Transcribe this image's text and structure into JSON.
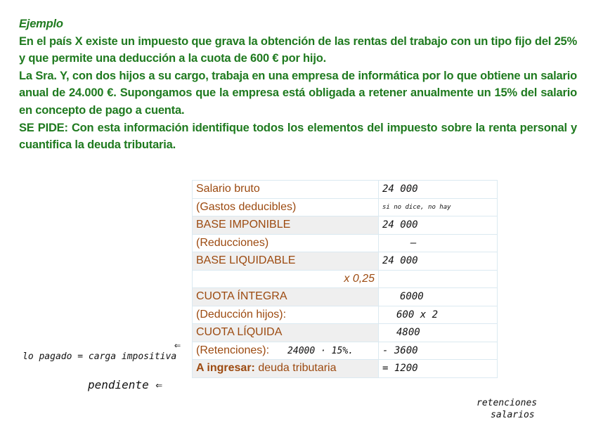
{
  "intro": {
    "title": "Ejemplo",
    "p1": "En el país X existe un impuesto que grava la obtención de las rentas del trabajo con un tipo fijo del 25% y que permite una deducción a la cuota de 600 € por hijo.",
    "p2": "La Sra. Y, con dos hijos a su cargo, trabaja en una empresa de informática por lo que obtiene un salario anual de 24.000 €. Supongamos que la empresa está obligada a retener anualmente un 15% del salario en concepto de pago a cuenta.",
    "p3_label": "SE PIDE:",
    "p3": " Con esta información identifique todos los elementos del impuesto sobre la renta personal y cuantifica la deuda tributaria."
  },
  "table": {
    "rows": [
      {
        "label": "Salario bruto",
        "value": "24 000"
      },
      {
        "label": "(Gastos deducibles)",
        "value": "si no dice, no hay"
      },
      {
        "label": "BASE IMPONIBLE",
        "value": "24 000"
      },
      {
        "label": "(Reducciones)",
        "value": "—"
      },
      {
        "label": "BASE LIQUIDABLE",
        "value": "24 000"
      },
      {
        "label": "x 0,25",
        "value": ""
      },
      {
        "label": "CUOTA ÍNTEGRA",
        "value": "6000"
      },
      {
        "label": "(Deducción hijos):",
        "value": "600 x 2"
      },
      {
        "label": "CUOTA LÍQUIDA",
        "value": "4800"
      },
      {
        "label": "(Retenciones):",
        "note": "24000 · 15%.",
        "value": "- 3600"
      },
      {
        "label_bold": "A ingresar:",
        "label": " deuda tributaria",
        "value": "= 1200"
      }
    ]
  },
  "annotations": {
    "lo_pagado": "lo pagado = carga impositiva",
    "pendiente": "pendiente ⇐",
    "arrow": "⇐",
    "retenciones": "retenciones",
    "salarios": "salarios"
  }
}
